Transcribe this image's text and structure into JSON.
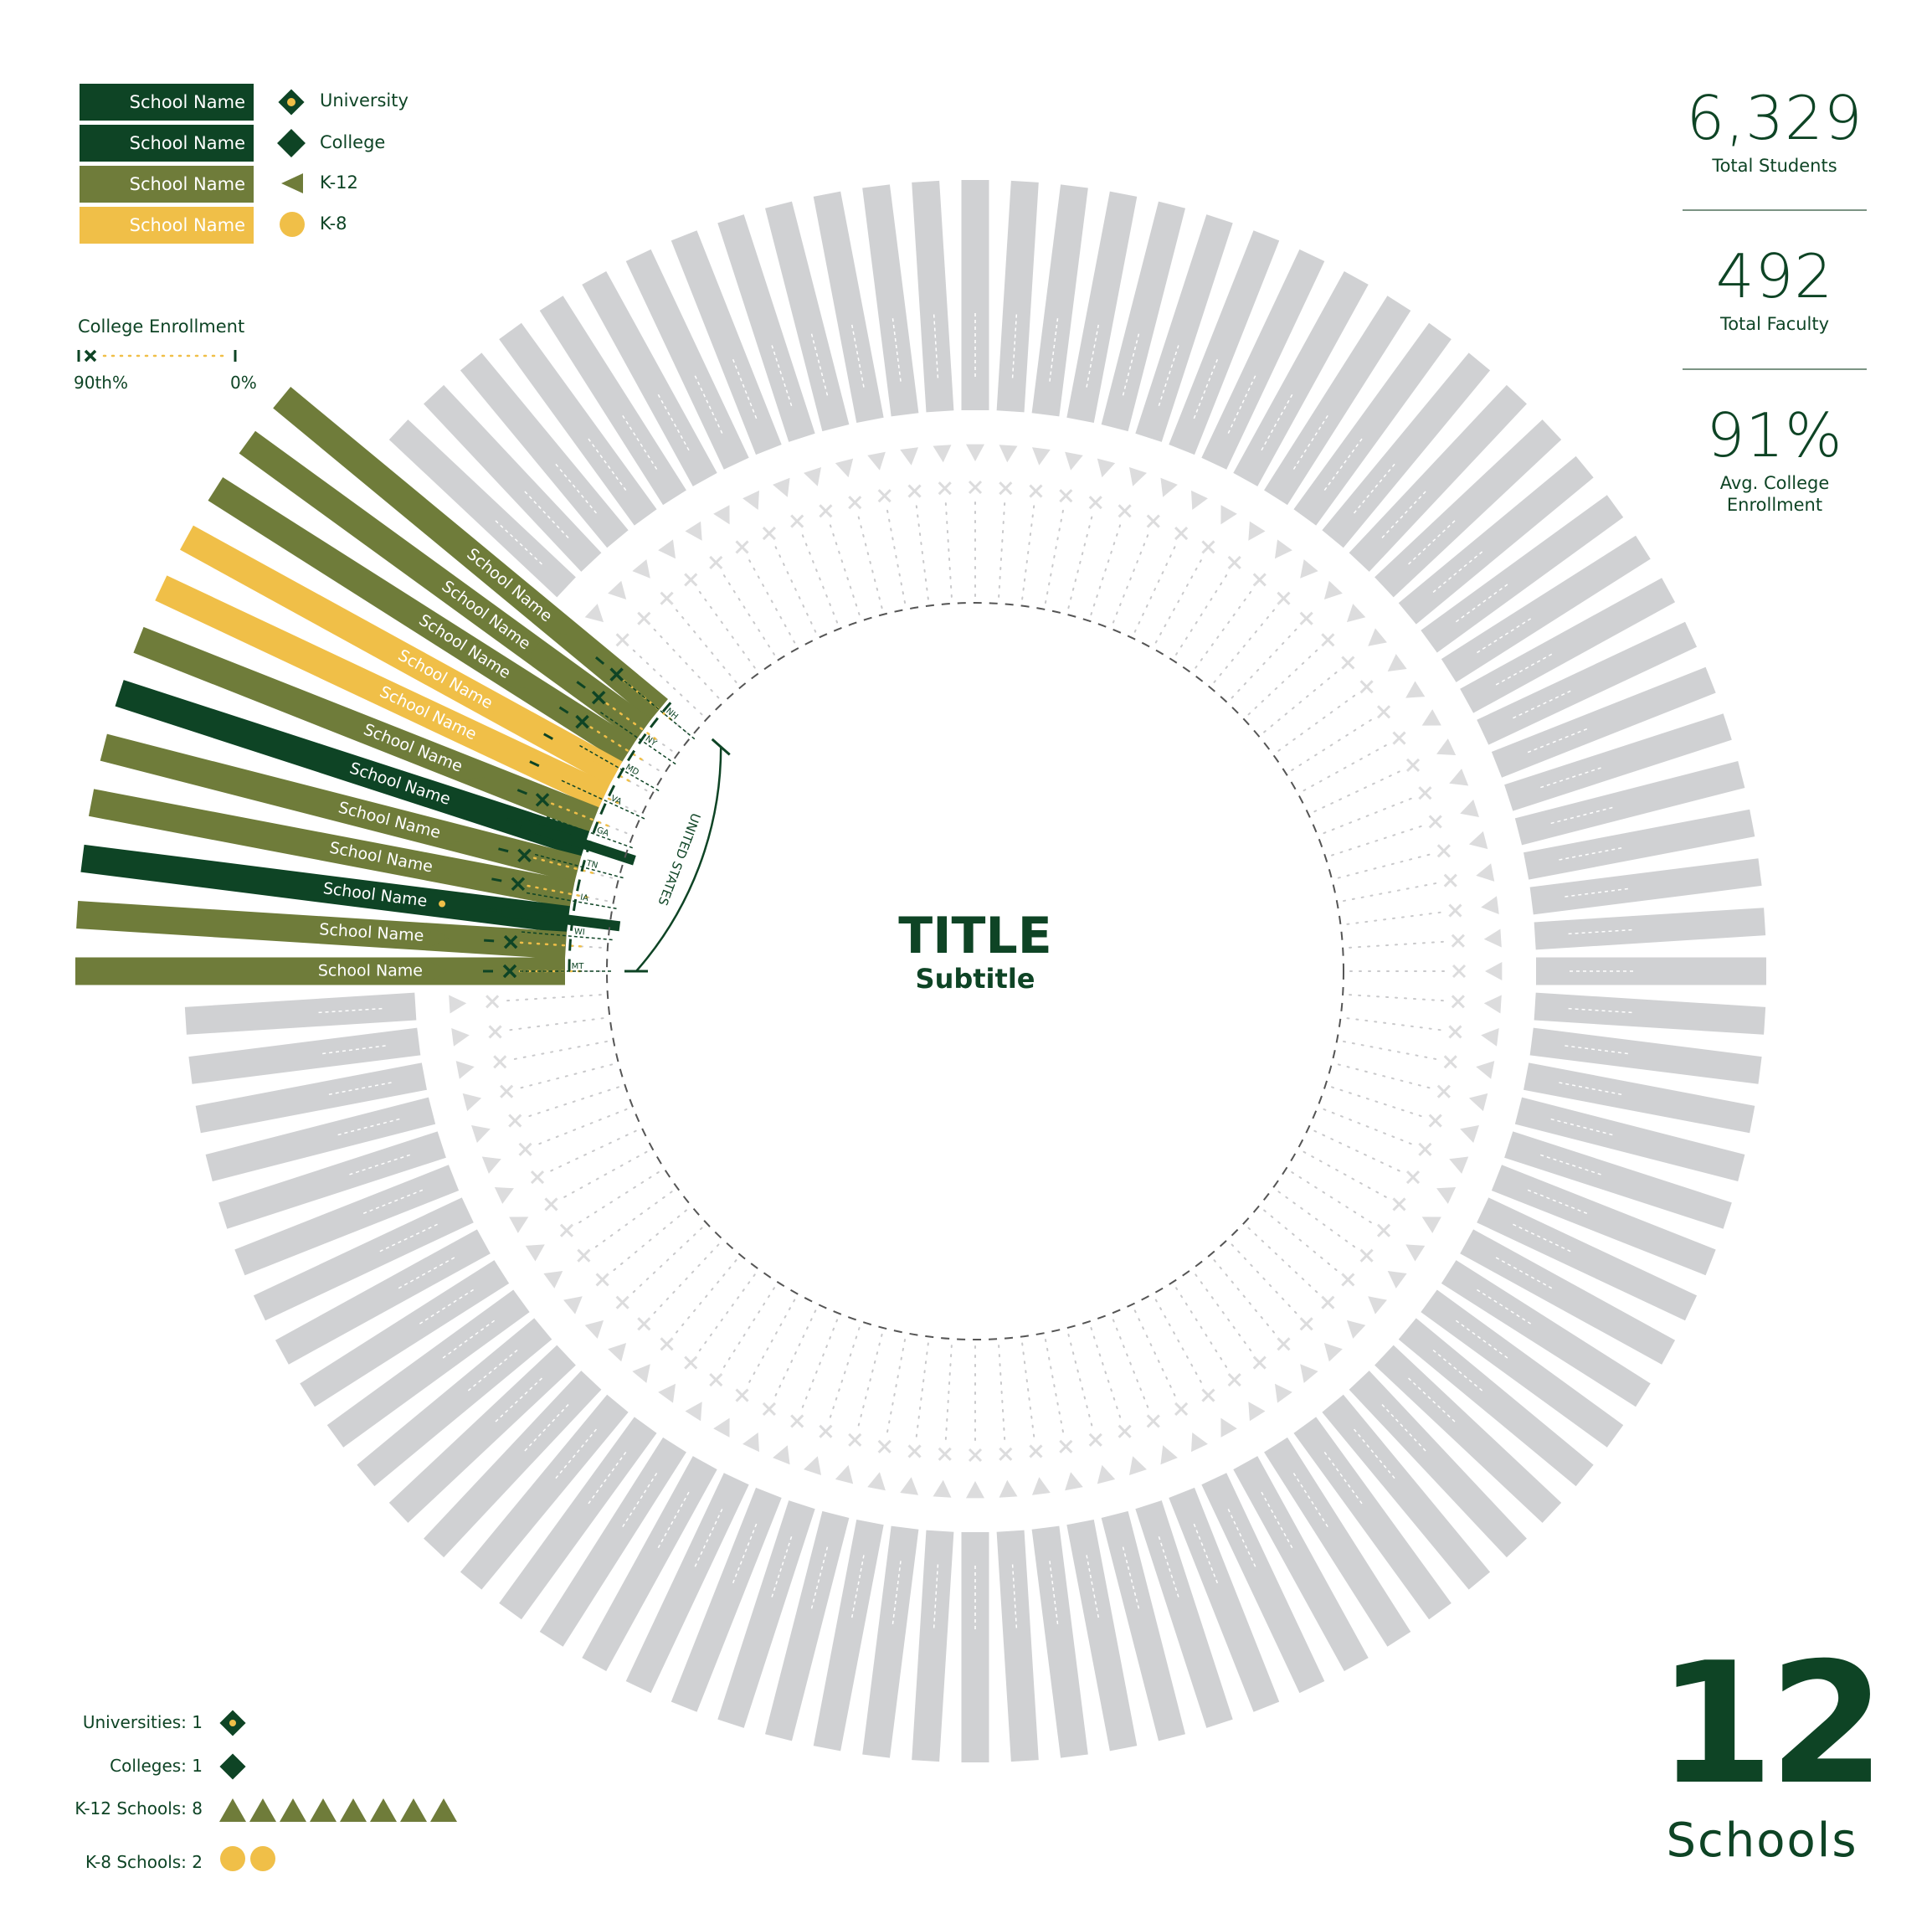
{
  "title": "TITLE",
  "subtitle": "Subtitle",
  "legend": {
    "schools": [
      {
        "label": "School Name",
        "color": "#0e4425",
        "dot": true
      },
      {
        "label": "School Name",
        "color": "#0e4425",
        "dot": false
      },
      {
        "label": "School Name",
        "color": "#6f7c3a",
        "dot": false
      },
      {
        "label": "School Name",
        "color": "#f0bf48",
        "dot": false
      }
    ],
    "types": [
      {
        "label": "University",
        "icon": "diamond-dot-icon"
      },
      {
        "label": "College",
        "icon": "diamond-icon"
      },
      {
        "label": "K-12",
        "icon": "triangle-icon"
      },
      {
        "label": "K-8",
        "icon": "circle-icon"
      }
    ]
  },
  "enrollment_legend": {
    "title": "College Enrollment",
    "left": "90th%",
    "right": "0%"
  },
  "stats": [
    {
      "value": "6,329",
      "label": "Total Students"
    },
    {
      "value": "492",
      "label": "Total Faculty"
    },
    {
      "value": "91%",
      "label": "Avg. College\nEnrollment"
    }
  ],
  "school_count": {
    "value": "12",
    "label": "Schools"
  },
  "type_counts": [
    {
      "label": "Universities: 1",
      "count": 1,
      "icon": "diamond-dot-icon"
    },
    {
      "label": "Colleges: 1",
      "count": 1,
      "icon": "diamond-icon"
    },
    {
      "label": "K-12 Schools: 8",
      "count": 8,
      "icon": "triangle-icon"
    },
    {
      "label": "K-8 Schools: 2",
      "count": 2,
      "icon": "circle-icon"
    }
  ],
  "colors": {
    "dark_green": "#0e4425",
    "olive": "#6f7c3a",
    "gold": "#f0bf48",
    "gray": "#d0d1d3",
    "ghost_marker": "#dcdcdd"
  },
  "chart_data": {
    "type": "radial",
    "title": "TITLE",
    "subtitle": "Subtitle",
    "total_slots": 100,
    "schools": [
      {
        "name": "School Name",
        "type": "K-12",
        "color": "olive",
        "enrollment_marker": "x",
        "state": "NH"
      },
      {
        "name": "School Name",
        "type": "K-12",
        "color": "olive",
        "enrollment_marker": "x",
        "state": "NY"
      },
      {
        "name": "School Name",
        "type": "K-12",
        "color": "olive",
        "enrollment_marker": "x",
        "state": "MD"
      },
      {
        "name": "School Name",
        "type": "K-8",
        "color": "gold",
        "enrollment_marker": "none",
        "state": "MD"
      },
      {
        "name": "School Name",
        "type": "K-8",
        "color": "gold",
        "enrollment_marker": "none",
        "state": "VA"
      },
      {
        "name": "School Name",
        "type": "K-12",
        "color": "olive",
        "enrollment_marker": "x",
        "state": "VA"
      },
      {
        "name": "School Name",
        "type": "College",
        "color": "dark_green",
        "enrollment_marker": "bar",
        "state": "VA"
      },
      {
        "name": "School Name",
        "type": "K-12",
        "color": "olive",
        "enrollment_marker": "x",
        "state": "GA"
      },
      {
        "name": "School Name",
        "type": "K-12",
        "color": "olive",
        "enrollment_marker": "x",
        "state": "TN"
      },
      {
        "name": "School Name",
        "type": "University",
        "color": "dark_green",
        "enrollment_marker": "bar",
        "state": "TN"
      },
      {
        "name": "School Name",
        "type": "K-12",
        "color": "olive",
        "enrollment_marker": "x",
        "state": "WI"
      },
      {
        "name": "School Name",
        "type": "K-12",
        "color": "olive",
        "enrollment_marker": "x",
        "state": "MT"
      }
    ],
    "region_label": "UNITED STATES",
    "states": [
      "NH",
      "NY",
      "MD",
      "VA",
      "GA",
      "TN",
      "IA",
      "WI",
      "MT"
    ]
  }
}
